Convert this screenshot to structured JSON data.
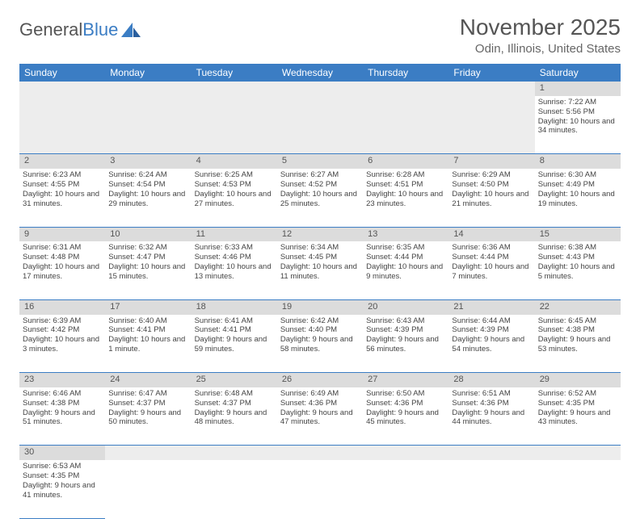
{
  "logo": {
    "part1": "General",
    "part2": "Blue"
  },
  "title": "November 2025",
  "location": "Odin, Illinois, United States",
  "colors": {
    "header_bg": "#3b7dc4",
    "header_text": "#ffffff",
    "daynum_bg": "#dcdcdc",
    "border": "#3b7dc4",
    "body_text": "#444"
  },
  "dayHeaders": [
    "Sunday",
    "Monday",
    "Tuesday",
    "Wednesday",
    "Thursday",
    "Friday",
    "Saturday"
  ],
  "weeks": [
    {
      "nums": [
        "",
        "",
        "",
        "",
        "",
        "",
        "1"
      ],
      "cells": [
        null,
        null,
        null,
        null,
        null,
        null,
        {
          "sunrise": "7:22 AM",
          "sunset": "5:56 PM",
          "daylight": "10 hours and 34 minutes."
        }
      ]
    },
    {
      "nums": [
        "2",
        "3",
        "4",
        "5",
        "6",
        "7",
        "8"
      ],
      "cells": [
        {
          "sunrise": "6:23 AM",
          "sunset": "4:55 PM",
          "daylight": "10 hours and 31 minutes."
        },
        {
          "sunrise": "6:24 AM",
          "sunset": "4:54 PM",
          "daylight": "10 hours and 29 minutes."
        },
        {
          "sunrise": "6:25 AM",
          "sunset": "4:53 PM",
          "daylight": "10 hours and 27 minutes."
        },
        {
          "sunrise": "6:27 AM",
          "sunset": "4:52 PM",
          "daylight": "10 hours and 25 minutes."
        },
        {
          "sunrise": "6:28 AM",
          "sunset": "4:51 PM",
          "daylight": "10 hours and 23 minutes."
        },
        {
          "sunrise": "6:29 AM",
          "sunset": "4:50 PM",
          "daylight": "10 hours and 21 minutes."
        },
        {
          "sunrise": "6:30 AM",
          "sunset": "4:49 PM",
          "daylight": "10 hours and 19 minutes."
        }
      ]
    },
    {
      "nums": [
        "9",
        "10",
        "11",
        "12",
        "13",
        "14",
        "15"
      ],
      "cells": [
        {
          "sunrise": "6:31 AM",
          "sunset": "4:48 PM",
          "daylight": "10 hours and 17 minutes."
        },
        {
          "sunrise": "6:32 AM",
          "sunset": "4:47 PM",
          "daylight": "10 hours and 15 minutes."
        },
        {
          "sunrise": "6:33 AM",
          "sunset": "4:46 PM",
          "daylight": "10 hours and 13 minutes."
        },
        {
          "sunrise": "6:34 AM",
          "sunset": "4:45 PM",
          "daylight": "10 hours and 11 minutes."
        },
        {
          "sunrise": "6:35 AM",
          "sunset": "4:44 PM",
          "daylight": "10 hours and 9 minutes."
        },
        {
          "sunrise": "6:36 AM",
          "sunset": "4:44 PM",
          "daylight": "10 hours and 7 minutes."
        },
        {
          "sunrise": "6:38 AM",
          "sunset": "4:43 PM",
          "daylight": "10 hours and 5 minutes."
        }
      ]
    },
    {
      "nums": [
        "16",
        "17",
        "18",
        "19",
        "20",
        "21",
        "22"
      ],
      "cells": [
        {
          "sunrise": "6:39 AM",
          "sunset": "4:42 PM",
          "daylight": "10 hours and 3 minutes."
        },
        {
          "sunrise": "6:40 AM",
          "sunset": "4:41 PM",
          "daylight": "10 hours and 1 minute."
        },
        {
          "sunrise": "6:41 AM",
          "sunset": "4:41 PM",
          "daylight": "9 hours and 59 minutes."
        },
        {
          "sunrise": "6:42 AM",
          "sunset": "4:40 PM",
          "daylight": "9 hours and 58 minutes."
        },
        {
          "sunrise": "6:43 AM",
          "sunset": "4:39 PM",
          "daylight": "9 hours and 56 minutes."
        },
        {
          "sunrise": "6:44 AM",
          "sunset": "4:39 PM",
          "daylight": "9 hours and 54 minutes."
        },
        {
          "sunrise": "6:45 AM",
          "sunset": "4:38 PM",
          "daylight": "9 hours and 53 minutes."
        }
      ]
    },
    {
      "nums": [
        "23",
        "24",
        "25",
        "26",
        "27",
        "28",
        "29"
      ],
      "cells": [
        {
          "sunrise": "6:46 AM",
          "sunset": "4:38 PM",
          "daylight": "9 hours and 51 minutes."
        },
        {
          "sunrise": "6:47 AM",
          "sunset": "4:37 PM",
          "daylight": "9 hours and 50 minutes."
        },
        {
          "sunrise": "6:48 AM",
          "sunset": "4:37 PM",
          "daylight": "9 hours and 48 minutes."
        },
        {
          "sunrise": "6:49 AM",
          "sunset": "4:36 PM",
          "daylight": "9 hours and 47 minutes."
        },
        {
          "sunrise": "6:50 AM",
          "sunset": "4:36 PM",
          "daylight": "9 hours and 45 minutes."
        },
        {
          "sunrise": "6:51 AM",
          "sunset": "4:36 PM",
          "daylight": "9 hours and 44 minutes."
        },
        {
          "sunrise": "6:52 AM",
          "sunset": "4:35 PM",
          "daylight": "9 hours and 43 minutes."
        }
      ]
    },
    {
      "nums": [
        "30",
        "",
        "",
        "",
        "",
        "",
        ""
      ],
      "cells": [
        {
          "sunrise": "6:53 AM",
          "sunset": "4:35 PM",
          "daylight": "9 hours and 41 minutes."
        },
        null,
        null,
        null,
        null,
        null,
        null
      ]
    }
  ],
  "labels": {
    "sunrise": "Sunrise: ",
    "sunset": "Sunset: ",
    "daylight": "Daylight: "
  }
}
